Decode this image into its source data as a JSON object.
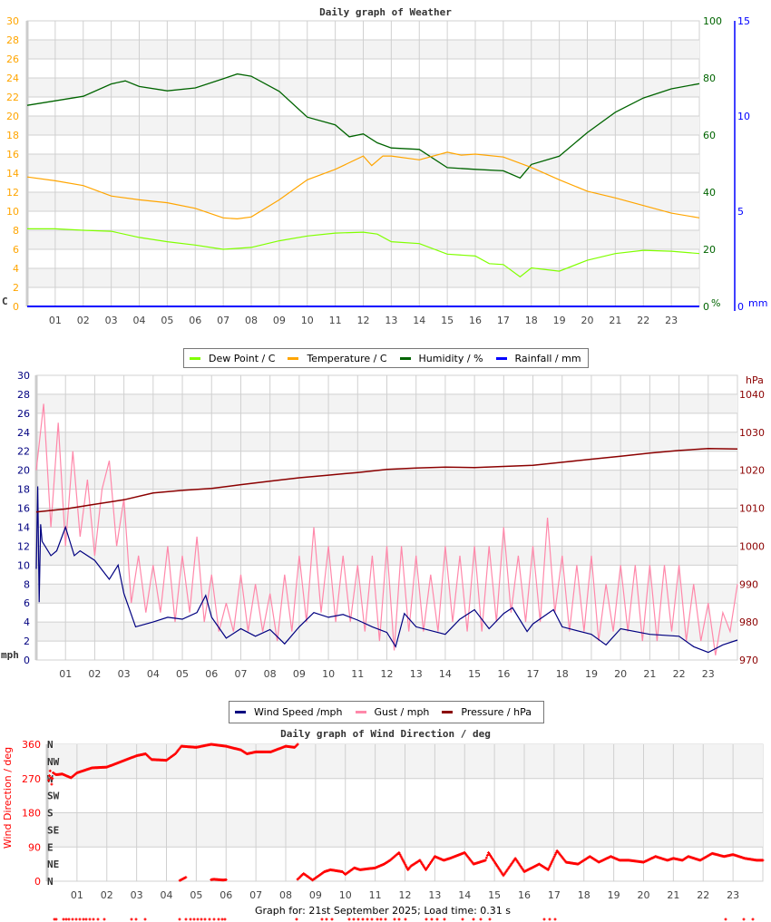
{
  "colors": {
    "dew_point": "#80ff00",
    "temperature": "#ffa500",
    "humidity": "#006400",
    "rainfall": "#0000ff",
    "wind_speed": "#000080",
    "gust": "#ff88aa",
    "pressure": "#8b0000",
    "wind_direction": "#ff0000",
    "grid": "#d0d0d0",
    "band": "#f3f3f3"
  },
  "chart_data": [
    {
      "type": "line",
      "title": "Daily graph of Weather",
      "x_ticks": [
        "01",
        "02",
        "03",
        "04",
        "05",
        "06",
        "07",
        "08",
        "09",
        "10",
        "11",
        "12",
        "13",
        "14",
        "15",
        "16",
        "17",
        "18",
        "19",
        "20",
        "21",
        "22",
        "23"
      ],
      "xlim": [
        0,
        24
      ],
      "grid": true,
      "axes": {
        "left": {
          "unit_label": "C",
          "ylim": [
            0,
            30
          ],
          "ticks": [
            "0",
            "2",
            "4",
            "6",
            "8",
            "10",
            "12",
            "14",
            "16",
            "18",
            "20",
            "22",
            "24",
            "26",
            "28",
            "30"
          ]
        },
        "right1": {
          "unit_label": "%",
          "ylim": [
            0,
            100
          ],
          "ticks": [
            "0",
            "20",
            "40",
            "60",
            "80",
            "100"
          ]
        },
        "right2": {
          "unit_label": "mm",
          "ylim": [
            0,
            15
          ],
          "ticks": [
            "0",
            "5",
            "10",
            "15"
          ]
        }
      },
      "legend": {
        "placement": "bottom",
        "entries": [
          "Dew Point / C",
          "Temperature / C",
          "Humidity / %",
          "Rainfall / mm"
        ]
      },
      "series": [
        {
          "name": "Dew Point / C",
          "axis": "left",
          "x": [
            0,
            1,
            2,
            3,
            4,
            5,
            6,
            7,
            8,
            9,
            10,
            11,
            12,
            12.5,
            13,
            14,
            15,
            16,
            16.5,
            17,
            17.6,
            18,
            19,
            20,
            21,
            22,
            23,
            24
          ],
          "y": [
            8.15,
            8.15,
            8.0,
            7.9,
            7.25,
            6.8,
            6.45,
            6.0,
            6.2,
            6.9,
            7.4,
            7.7,
            7.8,
            7.6,
            6.8,
            6.6,
            5.5,
            5.3,
            4.5,
            4.4,
            3.1,
            4.05,
            3.7,
            4.85,
            5.55,
            5.9,
            5.8,
            5.55
          ]
        },
        {
          "name": "Temperature / C",
          "axis": "left",
          "x": [
            0,
            1,
            2,
            3,
            4,
            5,
            6,
            7,
            7.5,
            8,
            9,
            10,
            11,
            12,
            12.3,
            12.7,
            13,
            14,
            15,
            15.5,
            16,
            17,
            18,
            19,
            20,
            21,
            22,
            23,
            24
          ],
          "y": [
            13.6,
            13.2,
            12.7,
            11.6,
            11.2,
            10.9,
            10.3,
            9.3,
            9.2,
            9.4,
            11.2,
            13.3,
            14.4,
            15.8,
            14.8,
            15.8,
            15.8,
            15.4,
            16.2,
            15.9,
            16.0,
            15.7,
            14.6,
            13.3,
            12.1,
            11.4,
            10.6,
            9.8,
            9.3
          ]
        },
        {
          "name": "Humidity / %",
          "axis": "right1",
          "x": [
            0,
            1,
            2,
            3,
            3.5,
            4,
            5,
            6,
            7,
            7.5,
            8,
            9,
            10,
            11,
            11.5,
            12,
            12.5,
            13,
            14,
            15,
            16,
            17,
            17.6,
            18,
            19,
            20,
            21,
            22,
            23,
            24
          ],
          "y": [
            70.4,
            72,
            73.6,
            77.9,
            79,
            77,
            75.5,
            76.5,
            79.7,
            81.4,
            80.6,
            75.3,
            66.3,
            63.6,
            59.4,
            60.4,
            57.3,
            55.5,
            55,
            48.6,
            48,
            47.5,
            45,
            49.7,
            52.6,
            60.9,
            68,
            73,
            76.2,
            78
          ]
        },
        {
          "name": "Rainfall / mm",
          "axis": "right2",
          "x": [
            0,
            24
          ],
          "y": [
            0,
            0
          ]
        }
      ]
    },
    {
      "type": "line",
      "title": "",
      "x_ticks": [
        "01",
        "02",
        "03",
        "04",
        "05",
        "06",
        "07",
        "08",
        "09",
        "10",
        "11",
        "12",
        "13",
        "14",
        "15",
        "16",
        "17",
        "18",
        "19",
        "20",
        "21",
        "22",
        "23"
      ],
      "xlim": [
        0,
        24
      ],
      "grid": true,
      "axes": {
        "left": {
          "unit_label": "mph",
          "ylim": [
            0,
            30
          ],
          "ticks": [
            "0",
            "2",
            "4",
            "6",
            "8",
            "10",
            "12",
            "14",
            "16",
            "18",
            "20",
            "22",
            "24",
            "26",
            "28",
            "30"
          ]
        },
        "right": {
          "unit_label": "hPa",
          "ylim": [
            970,
            1045
          ],
          "ticks": [
            "970",
            "980",
            "990",
            "1000",
            "1010",
            "1020",
            "1030",
            "1040"
          ]
        }
      },
      "legend": {
        "placement": "bottom",
        "entries": [
          "Wind Speed /mph",
          "Gust / mph",
          "Pressure / hPa"
        ]
      },
      "series": [
        {
          "name": "Wind Speed /mph",
          "axis": "left",
          "x": [
            0,
            0.05,
            0.1,
            0.15,
            0.2,
            0.3,
            0.5,
            0.7,
            1,
            1.3,
            1.5,
            2,
            2.5,
            2.8,
            3,
            3.4,
            4,
            4.5,
            5,
            5.5,
            5.8,
            6,
            6.5,
            7,
            7.5,
            8,
            8.5,
            9,
            9.5,
            10,
            10.5,
            11,
            11.5,
            12,
            12.3,
            12.6,
            13,
            14,
            14.5,
            15,
            15.5,
            16,
            16.3,
            16.8,
            17,
            17.7,
            18,
            19,
            19.5,
            20,
            21,
            22,
            22.5,
            23,
            23.5,
            24
          ],
          "y": [
            9.6,
            18.3,
            6.1,
            14.3,
            12.5,
            12,
            11,
            11.5,
            14,
            11,
            11.5,
            10.5,
            8.5,
            10,
            7,
            3.5,
            4,
            4.5,
            4.3,
            5,
            6.8,
            4.5,
            2.3,
            3.3,
            2.5,
            3.2,
            1.7,
            3.5,
            5.0,
            4.5,
            4.8,
            4.2,
            3.5,
            2.9,
            1.4,
            4.9,
            3.5,
            2.7,
            4.3,
            5.3,
            3.3,
            4.9,
            5.5,
            3.0,
            3.8,
            5.3,
            3.5,
            2.7,
            1.6,
            3.3,
            2.7,
            2.5,
            1.4,
            0.8,
            1.6,
            2.1
          ]
        },
        {
          "name": "Gust / mph",
          "axis": "left",
          "x_step_hours": 0.25,
          "y": [
            20,
            27,
            14,
            25,
            12,
            22,
            13,
            19,
            11,
            18,
            21,
            12,
            17,
            6,
            11,
            5,
            10,
            5,
            12,
            4,
            11,
            5,
            13,
            4,
            9,
            3,
            6,
            3,
            9,
            3,
            8,
            3,
            7,
            2,
            9,
            3,
            11,
            4,
            14,
            5,
            12,
            4,
            11,
            4,
            10,
            3,
            11,
            2,
            12,
            1,
            12,
            3,
            11,
            3,
            9,
            3,
            12,
            4,
            11,
            3,
            12,
            3,
            12,
            4,
            14,
            5,
            11,
            4,
            12,
            4,
            15,
            5,
            11,
            3,
            10,
            3,
            11,
            2,
            8,
            3,
            10,
            3,
            10,
            2,
            10,
            2,
            10,
            3,
            10,
            2,
            8,
            2,
            6,
            0.5,
            5,
            3,
            8
          ]
        },
        {
          "name": "Pressure / hPa",
          "axis": "right",
          "x": [
            0,
            1,
            2,
            3,
            4,
            5,
            6,
            7,
            8,
            9,
            10,
            11,
            12,
            13,
            14,
            15,
            16,
            17,
            18,
            19,
            20,
            21,
            22,
            23,
            24
          ],
          "y": [
            1009.0,
            1009.8,
            1011,
            1012.2,
            1014.0,
            1014.7,
            1015.2,
            1016.2,
            1017.1,
            1018,
            1018.7,
            1019.4,
            1020.2,
            1020.6,
            1020.8,
            1020.7,
            1021,
            1021.3,
            1022.1,
            1022.9,
            1023.7,
            1024.5,
            1025.2,
            1025.7,
            1025.6
          ]
        }
      ]
    },
    {
      "type": "scatter",
      "title": "Daily graph of Wind Direction / deg",
      "ylabel": "Wind Direction / deg",
      "x_ticks": [
        "01",
        "02",
        "03",
        "04",
        "05",
        "06",
        "07",
        "08",
        "09",
        "10",
        "11",
        "12",
        "13",
        "14",
        "15",
        "16",
        "17",
        "18",
        "19",
        "20",
        "21",
        "22",
        "23"
      ],
      "xlim": [
        0,
        24
      ],
      "ylim": [
        0,
        360
      ],
      "y_ticks": [
        "0",
        "90",
        "180",
        "270",
        "360"
      ],
      "compass_labels": [
        "N",
        "NE",
        "E",
        "SE",
        "S",
        "SW",
        "W",
        "NW",
        "N"
      ],
      "grid": true,
      "series": [
        {
          "name": "",
          "segments": [
            {
              "x": [
                0.05,
                0.1,
                0.15,
                0.2,
                0.3,
                0.5,
                0.8,
                1,
                1.5,
                2,
                2.5,
                3,
                3.3,
                3.5,
                4,
                4.3,
                4.5,
                5,
                5.5,
                6,
                6.5,
                6.7,
                7,
                7.5,
                8,
                8.3,
                8.4
              ],
              "y": [
                265,
                290,
                255,
                285,
                280,
                282,
                272,
                285,
                298,
                300,
                315,
                330,
                335,
                320,
                318,
                335,
                355,
                352,
                360,
                355,
                345,
                335,
                340,
                340,
                355,
                352,
                360
              ]
            },
            {
              "x": [
                4.45,
                4.55,
                4.65
              ],
              "y": [
                2,
                6,
                10
              ]
            },
            {
              "x": [
                5.5,
                5.6,
                5.9,
                6.0
              ],
              "y": [
                4,
                5,
                3,
                4
              ]
            },
            {
              "x": [
                8.4,
                8.6,
                8.9,
                9.3,
                9.5,
                9.9,
                10,
                10.3,
                10.5,
                11,
                11.3,
                11.5,
                11.8,
                12.1,
                12.2,
                12.5,
                12.7,
                13,
                13.3,
                13.5,
                14,
                14.3,
                14.7,
                14.8,
                15.3,
                15.7,
                16,
                16.5,
                16.8,
                17.1,
                17.4,
                17.8,
                18.2,
                18.5,
                18.9,
                19.2,
                19.5,
                20,
                20.4,
                20.8,
                21,
                21.3,
                21.5,
                21.9,
                22.3,
                22.7,
                23,
                23.4,
                23.8,
                24
              ],
              "y": [
                5,
                20,
                3,
                25,
                30,
                25,
                18,
                35,
                30,
                35,
                45,
                55,
                75,
                30,
                40,
                55,
                30,
                65,
                55,
                60,
                75,
                45,
                55,
                75,
                15,
                60,
                25,
                45,
                30,
                80,
                50,
                45,
                65,
                50,
                65,
                55,
                55,
                50,
                65,
                55,
                60,
                55,
                65,
                55,
                73,
                65,
                70,
                60,
                55,
                55
              ]
            }
          ]
        }
      ]
    }
  ],
  "footer": {
    "text": "Graph for: 21st September 2025; Load time: 0.31 s"
  }
}
